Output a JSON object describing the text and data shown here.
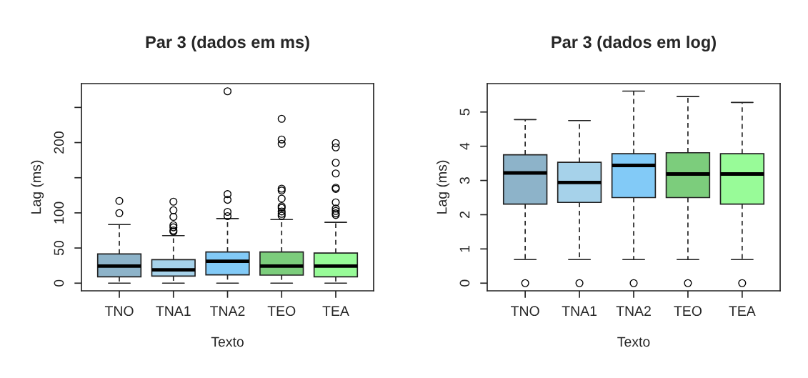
{
  "chart_data": [
    {
      "type": "box",
      "title": "Par 3 (dados em ms)",
      "xlabel": "Texto",
      "ylabel": "Lag (ms)",
      "categories": [
        "TNO",
        "TNA1",
        "TNA2",
        "TEO",
        "TEA"
      ],
      "colors": [
        "#8db3c9",
        "#a6d2ea",
        "#82caf7",
        "#7ccd7c",
        "#98fb98"
      ],
      "boxes": [
        {
          "low": 0,
          "q1": 9.1,
          "median": 24.3,
          "q3": 41.6,
          "high": 83.4,
          "outliers": [
            99.7,
            117
          ]
        },
        {
          "low": 0,
          "q1": 10.1,
          "median": 18.9,
          "q3": 33.4,
          "high": 67.6,
          "outliers": [
            73.3,
            75,
            79.4,
            82.4,
            94.3,
            103.7,
            115.9
          ]
        },
        {
          "low": 0,
          "q1": 11.8,
          "median": 31.1,
          "q3": 44.3,
          "high": 91.9,
          "outliers": [
            95.3,
            101.4,
            118.6,
            126.7,
            273
          ]
        },
        {
          "low": 0,
          "q1": 11.5,
          "median": 24.3,
          "q3": 44.3,
          "high": 90.5,
          "outliers": [
            95.9,
            98.6,
            102,
            107.1,
            109.5,
            120.3,
            131.8,
            134.5,
            198.3,
            204.4,
            233.8
          ]
        },
        {
          "low": 0,
          "q1": 9.1,
          "median": 24.3,
          "q3": 42.9,
          "high": 86.5,
          "outliers": [
            97,
            99.3,
            102.7,
            106.1,
            114.9,
            134.1,
            135.8,
            156.1,
            171.3,
            193.2,
            199.3
          ]
        }
      ],
      "ylim": [
        -10.9,
        283.9
      ],
      "yticks": [
        0,
        50,
        100,
        {
          "value": 150,
          "label": null
        },
        200,
        {
          "value": 250,
          "label": null
        }
      ],
      "grid": false,
      "legend": false
    },
    {
      "type": "box",
      "title": "Par 3 (dados em log)",
      "xlabel": "Texto",
      "ylabel": "Lag (ms)",
      "categories": [
        "TNO",
        "TNA1",
        "TNA2",
        "TEO",
        "TEA"
      ],
      "colors": [
        "#8db3c9",
        "#a6d2ea",
        "#82caf7",
        "#7ccd7c",
        "#98fb98"
      ],
      "boxes": [
        {
          "low": 0.69,
          "q1": 2.31,
          "median": 3.22,
          "q3": 3.75,
          "high": 4.78,
          "outliers": [
            0
          ]
        },
        {
          "low": 0.69,
          "q1": 2.36,
          "median": 2.94,
          "q3": 3.53,
          "high": 4.75,
          "outliers": [
            0
          ]
        },
        {
          "low": 0.69,
          "q1": 2.5,
          "median": 3.44,
          "q3": 3.78,
          "high": 5.61,
          "outliers": [
            0
          ]
        },
        {
          "low": 0.69,
          "q1": 2.5,
          "median": 3.19,
          "q3": 3.81,
          "high": 5.45,
          "outliers": [
            0
          ]
        },
        {
          "low": 0.69,
          "q1": 2.31,
          "median": 3.19,
          "q3": 3.78,
          "high": 5.28,
          "outliers": [
            0
          ]
        }
      ],
      "ylim": [
        -0.224,
        5.83
      ],
      "yticks": [
        0,
        1,
        2,
        3,
        4,
        5
      ],
      "grid": false,
      "legend": false
    }
  ]
}
